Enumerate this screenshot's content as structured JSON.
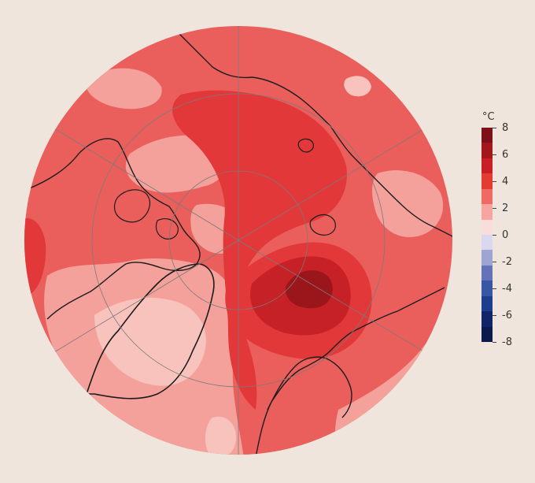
{
  "legend": {
    "unit": "°C",
    "ticks": [
      "8",
      "6",
      "4",
      "2",
      "0",
      "-2",
      "-4",
      "-6",
      "-8"
    ],
    "colors": [
      "#7c1118",
      "#a3171c",
      "#c91f24",
      "#e33b32",
      "#ee6a63",
      "#f6a5a0",
      "#fadcdb",
      "#dad8ee",
      "#9ea4d4",
      "#6472b9",
      "#3856a3",
      "#1e3d8c",
      "#10246a",
      "#0b1a4c"
    ]
  },
  "map": {
    "projection": "north polar stereographic",
    "palette": {
      "base": "#ea5f5c",
      "light": "#f4a09b",
      "pale": "#f8c2bd",
      "strong": "#e2383a",
      "dark": "#c52126",
      "darkest": "#9a161b",
      "coastline": "#1c1c1c",
      "grid": "#7a7a7a"
    }
  }
}
